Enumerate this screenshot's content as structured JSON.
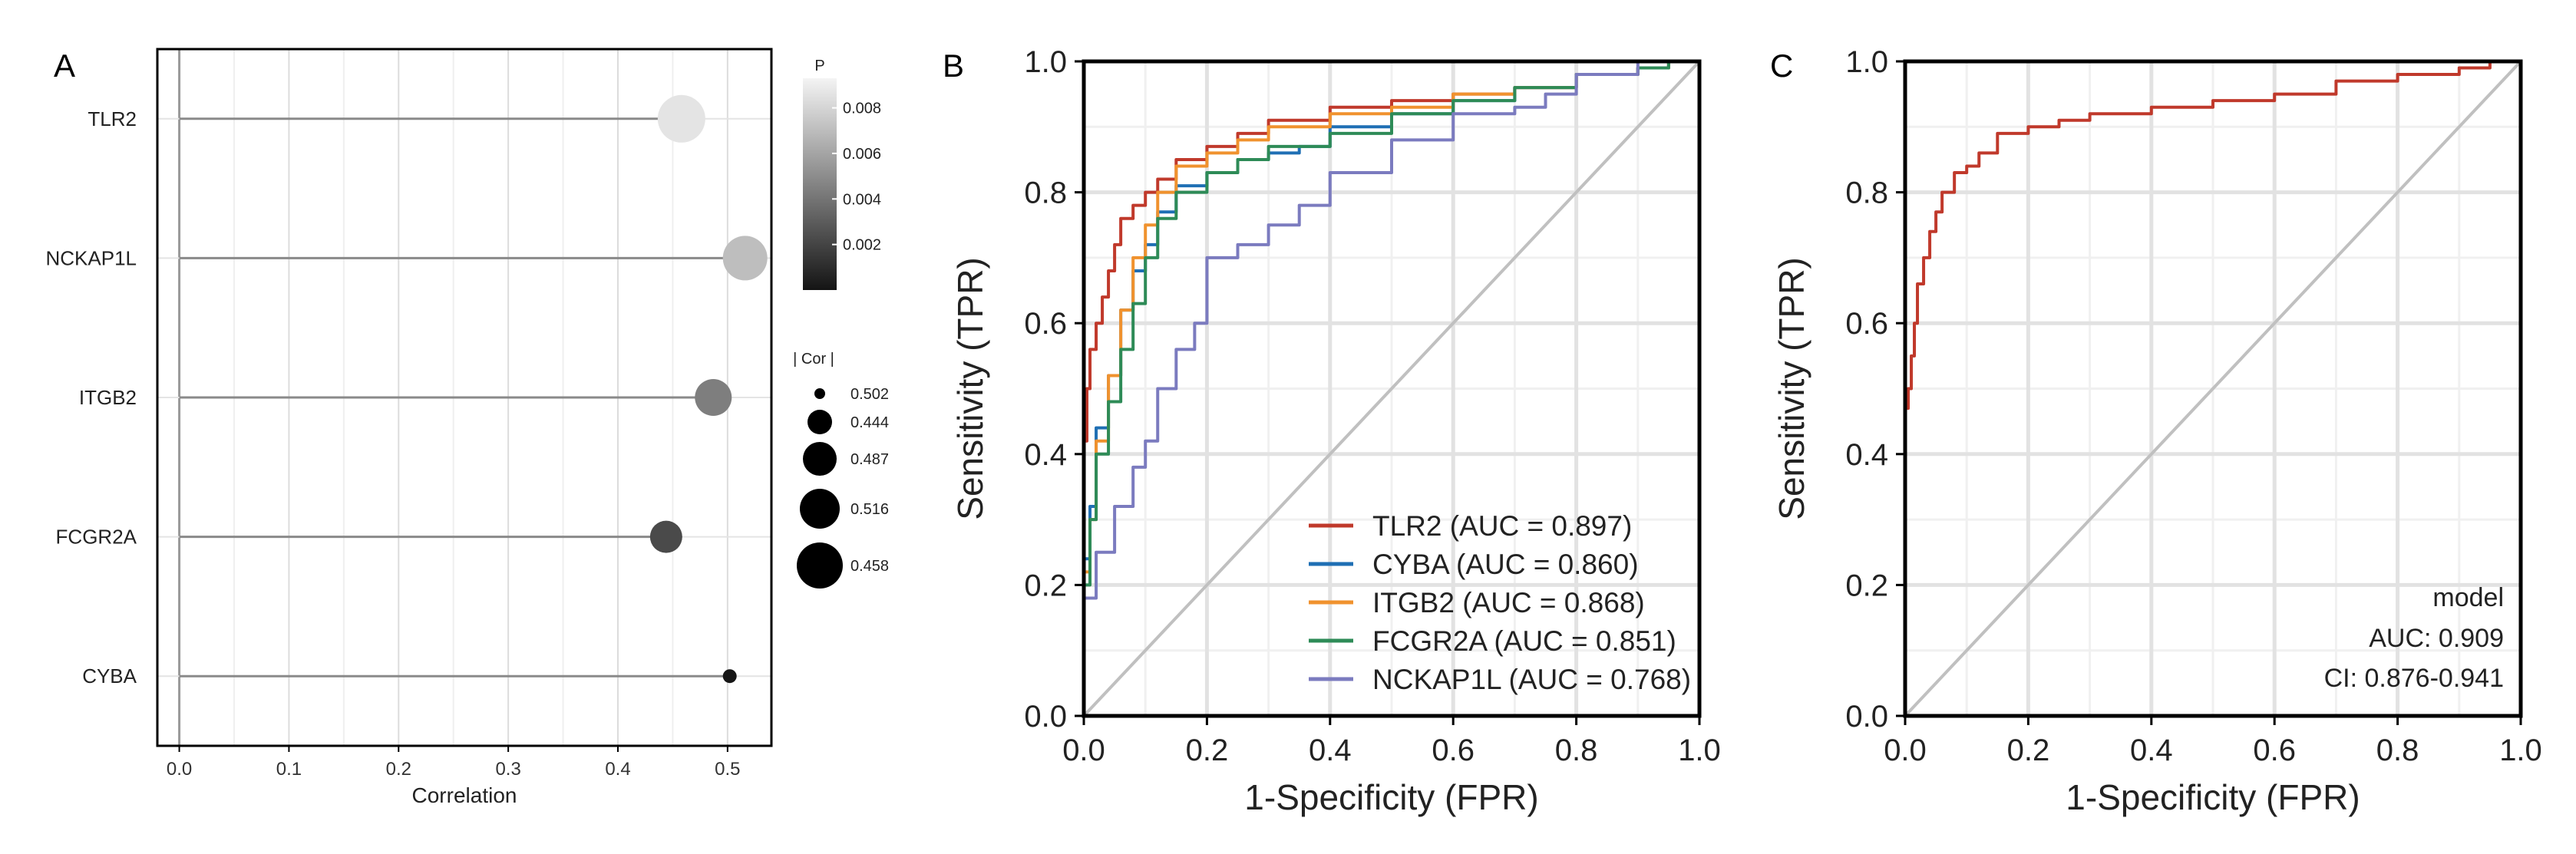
{
  "chart_data": [
    {
      "panel": "A",
      "type": "scatter",
      "subtype": "lollipop",
      "xlabel": "Correlation",
      "xlim": [
        -0.02,
        0.54
      ],
      "xticks": [
        0.0,
        0.1,
        0.2,
        0.3,
        0.4,
        0.5
      ],
      "xtick_labels": [
        "0.0",
        "0.1",
        "0.2",
        "0.3",
        "0.4",
        "0.5"
      ],
      "categories": [
        "TLR2",
        "NCKAP1L",
        "ITGB2",
        "FCGR2A",
        "CYBA"
      ],
      "values": [
        0.458,
        0.516,
        0.487,
        0.444,
        0.502
      ],
      "p_values": [
        0.0088,
        0.0072,
        0.0045,
        0.0023,
        0.0001
      ],
      "color_legend": {
        "title": "P",
        "p_range": [
          0,
          0.0093
        ],
        "ticks": [
          0.008,
          0.006,
          0.004,
          0.002
        ],
        "tick_labels": [
          "0.008",
          "0.006",
          "0.004",
          "0.002"
        ]
      },
      "size_legend": {
        "title": "| Cor |",
        "labels": [
          "0.502",
          "0.444",
          "0.487",
          "0.516",
          "0.458"
        ]
      },
      "grid": true
    },
    {
      "panel": "B",
      "type": "line",
      "subtype": "roc",
      "xlabel": "1-Specificity (FPR)",
      "ylabel": "Sensitivity (TPR)",
      "xlim": [
        0,
        1
      ],
      "ylim": [
        0,
        1
      ],
      "ticks": [
        0,
        0.2,
        0.4,
        0.6,
        0.8,
        1
      ],
      "tick_labels": [
        "0.0",
        "0.2",
        "0.4",
        "0.6",
        "0.8",
        "1.0"
      ],
      "legend_position": "bottom-right",
      "series": [
        {
          "name": "TLR2",
          "label": "TLR2 (AUC = 0.897)",
          "auc": 0.897,
          "color": "#c0392b",
          "x": [
            0,
            0,
            0.005,
            0.01,
            0.02,
            0.03,
            0.04,
            0.05,
            0.06,
            0.08,
            0.1,
            0.12,
            0.15,
            0.2,
            0.25,
            0.3,
            0.4,
            0.5,
            0.6,
            0.7,
            0.8,
            0.9,
            0.95,
            1.0
          ],
          "y": [
            0,
            0.28,
            0.42,
            0.5,
            0.56,
            0.6,
            0.64,
            0.68,
            0.72,
            0.76,
            0.78,
            0.8,
            0.82,
            0.85,
            0.87,
            0.89,
            0.91,
            0.93,
            0.94,
            0.95,
            0.96,
            0.98,
            0.99,
            1.0
          ]
        },
        {
          "name": "CYBA",
          "label": "CYBA (AUC = 0.860)",
          "auc": 0.86,
          "color": "#1f6fb4",
          "x": [
            0,
            0,
            0.01,
            0.02,
            0.04,
            0.06,
            0.08,
            0.1,
            0.12,
            0.15,
            0.2,
            0.25,
            0.3,
            0.35,
            0.4,
            0.5,
            0.6,
            0.7,
            0.8,
            0.9,
            0.95,
            1.0
          ],
          "y": [
            0,
            0.14,
            0.24,
            0.32,
            0.44,
            0.52,
            0.62,
            0.68,
            0.72,
            0.77,
            0.81,
            0.83,
            0.85,
            0.86,
            0.87,
            0.9,
            0.92,
            0.94,
            0.96,
            0.98,
            0.99,
            1.0
          ]
        },
        {
          "name": "ITGB2",
          "label": "ITGB2 (AUC = 0.868)",
          "auc": 0.868,
          "color": "#f0922e",
          "x": [
            0,
            0,
            0.01,
            0.02,
            0.04,
            0.06,
            0.08,
            0.1,
            0.12,
            0.15,
            0.2,
            0.25,
            0.3,
            0.4,
            0.5,
            0.6,
            0.7,
            0.8,
            0.9,
            0.95,
            1.0
          ],
          "y": [
            0,
            0.12,
            0.22,
            0.3,
            0.42,
            0.52,
            0.62,
            0.7,
            0.75,
            0.8,
            0.84,
            0.86,
            0.88,
            0.9,
            0.92,
            0.93,
            0.95,
            0.96,
            0.98,
            0.99,
            1.0
          ]
        },
        {
          "name": "FCGR2A",
          "label": "FCGR2A (AUC = 0.851)",
          "auc": 0.851,
          "color": "#2e8b57",
          "x": [
            0,
            0,
            0.01,
            0.02,
            0.04,
            0.06,
            0.08,
            0.1,
            0.12,
            0.15,
            0.2,
            0.25,
            0.3,
            0.4,
            0.5,
            0.6,
            0.7,
            0.8,
            0.9,
            0.95,
            1.0
          ],
          "y": [
            0,
            0.1,
            0.2,
            0.3,
            0.4,
            0.48,
            0.56,
            0.63,
            0.7,
            0.76,
            0.8,
            0.83,
            0.85,
            0.87,
            0.89,
            0.92,
            0.94,
            0.96,
            0.98,
            0.99,
            1.0
          ]
        },
        {
          "name": "NCKAP1L",
          "label": "NCKAP1L (AUC = 0.768)",
          "auc": 0.768,
          "color": "#7b7bbf",
          "x": [
            0,
            0,
            0.02,
            0.05,
            0.08,
            0.1,
            0.12,
            0.15,
            0.18,
            0.2,
            0.25,
            0.3,
            0.35,
            0.4,
            0.5,
            0.6,
            0.7,
            0.75,
            0.8,
            0.9,
            1.0
          ],
          "y": [
            0,
            0.1,
            0.18,
            0.25,
            0.32,
            0.38,
            0.42,
            0.5,
            0.56,
            0.6,
            0.7,
            0.72,
            0.75,
            0.78,
            0.83,
            0.88,
            0.92,
            0.93,
            0.95,
            0.98,
            1.0
          ]
        }
      ],
      "diagonal_color": "#c0c0c0"
    },
    {
      "panel": "C",
      "type": "line",
      "subtype": "roc",
      "xlabel": "1-Specificity (FPR)",
      "ylabel": "Sensitivity (TPR)",
      "xlim": [
        0,
        1
      ],
      "ylim": [
        0,
        1
      ],
      "ticks": [
        0,
        0.2,
        0.4,
        0.6,
        0.8,
        1
      ],
      "tick_labels": [
        "0.0",
        "0.2",
        "0.4",
        "0.6",
        "0.8",
        "1.0"
      ],
      "series": [
        {
          "name": "model",
          "color": "#c0392b",
          "x": [
            0,
            0,
            0.005,
            0.01,
            0.015,
            0.02,
            0.03,
            0.04,
            0.05,
            0.06,
            0.08,
            0.1,
            0.12,
            0.15,
            0.2,
            0.25,
            0.3,
            0.4,
            0.5,
            0.6,
            0.7,
            0.8,
            0.9,
            0.95,
            1.0
          ],
          "y": [
            0,
            0.45,
            0.47,
            0.5,
            0.55,
            0.6,
            0.66,
            0.7,
            0.74,
            0.77,
            0.8,
            0.83,
            0.84,
            0.86,
            0.89,
            0.9,
            0.91,
            0.92,
            0.93,
            0.94,
            0.95,
            0.97,
            0.98,
            0.99,
            1.0
          ]
        }
      ],
      "diagonal_color": "#c0c0c0",
      "annotation": [
        "model",
        "AUC: 0.909",
        "CI: 0.876-0.941"
      ]
    }
  ]
}
